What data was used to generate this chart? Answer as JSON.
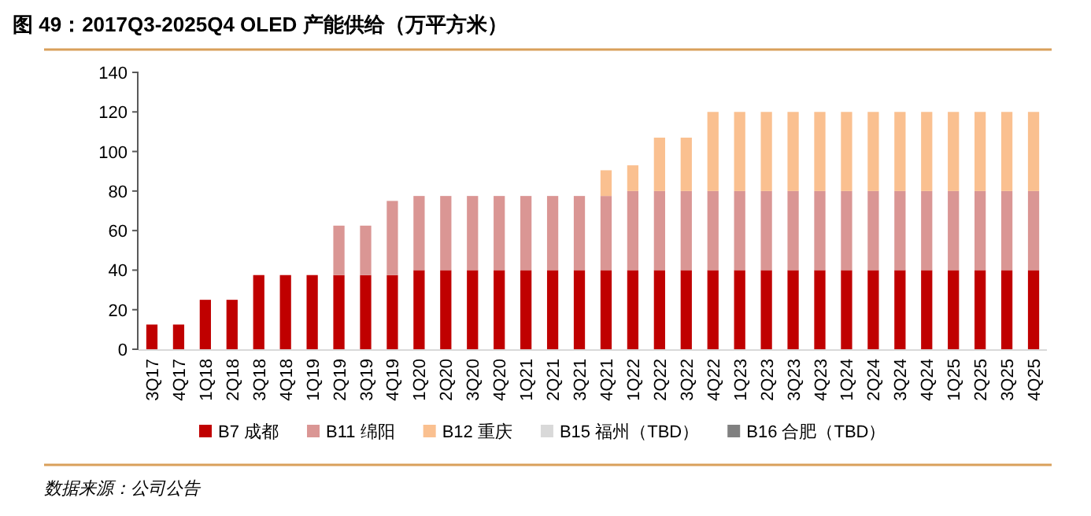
{
  "chart_data": {
    "type": "bar",
    "title": "图 49：2017Q3-2025Q4 OLED 产能供给（万平方米）",
    "stacked": true,
    "grid": false,
    "legend": "bottom",
    "categories": [
      "3Q17",
      "4Q17",
      "1Q18",
      "2Q18",
      "3Q18",
      "4Q18",
      "1Q19",
      "2Q19",
      "3Q19",
      "4Q19",
      "1Q20",
      "2Q20",
      "3Q20",
      "4Q20",
      "1Q21",
      "2Q21",
      "3Q21",
      "4Q21",
      "1Q22",
      "2Q22",
      "3Q22",
      "4Q22",
      "1Q23",
      "2Q23",
      "3Q23",
      "4Q23",
      "1Q24",
      "2Q24",
      "3Q24",
      "4Q24",
      "1Q25",
      "2Q25",
      "3Q25",
      "4Q25"
    ],
    "series": [
      {
        "name": "B7 成都",
        "color": "#c00000",
        "values": [
          12.5,
          12.5,
          25,
          25,
          37.5,
          37.5,
          37.5,
          37.5,
          37.5,
          37.5,
          40,
          40,
          40,
          40,
          40,
          40,
          40,
          40,
          40,
          40,
          40,
          40,
          40,
          40,
          40,
          40,
          40,
          40,
          40,
          40,
          40,
          40,
          40,
          40
        ]
      },
      {
        "name": "B11 绵阳",
        "color": "#da9694",
        "values": [
          null,
          null,
          null,
          null,
          null,
          null,
          null,
          25,
          25,
          37.5,
          37.5,
          37.5,
          37.5,
          37.5,
          37.5,
          37.5,
          37.5,
          37.5,
          40,
          40,
          40,
          40,
          40,
          40,
          40,
          40,
          40,
          40,
          40,
          40,
          40,
          40,
          40,
          40
        ]
      },
      {
        "name": "B12 重庆",
        "color": "#fac090",
        "values": [
          null,
          null,
          null,
          null,
          null,
          null,
          null,
          null,
          null,
          null,
          null,
          null,
          null,
          null,
          null,
          null,
          null,
          13,
          13,
          27,
          27,
          40,
          40,
          40,
          40,
          40,
          40,
          40,
          40,
          40,
          40,
          40,
          40,
          40
        ]
      },
      {
        "name": "B15 福州（TBD）",
        "color": "#d9d9d9",
        "values": [
          null,
          null,
          null,
          null,
          null,
          null,
          null,
          null,
          null,
          null,
          null,
          null,
          null,
          null,
          null,
          null,
          null,
          null,
          null,
          null,
          null,
          null,
          null,
          null,
          null,
          null,
          null,
          null,
          null,
          null,
          null,
          null,
          null,
          null
        ]
      },
      {
        "name": "B16 合肥（TBD）",
        "color": "#808080",
        "values": [
          null,
          null,
          null,
          null,
          null,
          null,
          null,
          null,
          null,
          null,
          null,
          null,
          null,
          null,
          null,
          null,
          null,
          null,
          null,
          null,
          null,
          null,
          null,
          null,
          null,
          null,
          null,
          null,
          null,
          null,
          null,
          null,
          null,
          null
        ]
      }
    ],
    "ylim": [
      0,
      140
    ],
    "yticks": [
      0,
      20,
      40,
      60,
      80,
      100,
      120,
      140
    ],
    "annotations": [
      "数据来源：公司公告"
    ]
  }
}
